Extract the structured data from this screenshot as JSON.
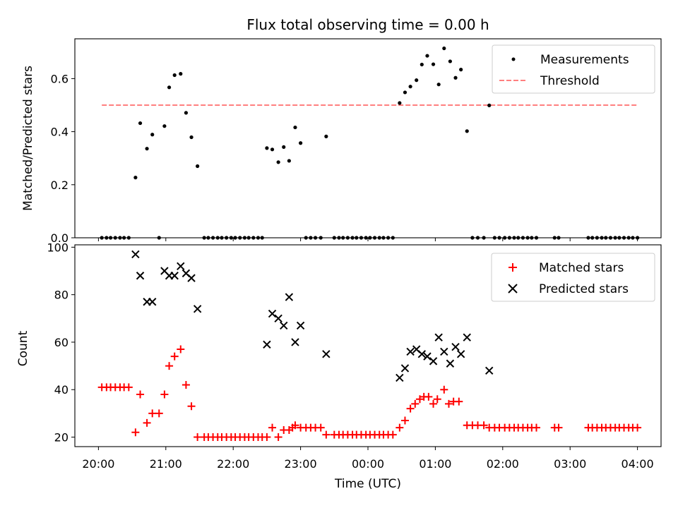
{
  "chart_data": [
    {
      "type": "scatter",
      "title": "Flux total observing time = 0.00 h",
      "ylabel": "Matched/Predicted stars",
      "xlabel": "",
      "xlim": [
        -0.35,
        8.35
      ],
      "ylim": [
        0.0,
        0.75
      ],
      "yticks": [
        "0.0",
        "0.2",
        "0.4",
        "0.6"
      ],
      "legend_position": "top-right",
      "series": [
        {
          "name": "Measurements",
          "marker": "dot",
          "color": "#000000",
          "points": [
            [
              0.05,
              0
            ],
            [
              0.12,
              0
            ],
            [
              0.18,
              0
            ],
            [
              0.25,
              0
            ],
            [
              0.32,
              0
            ],
            [
              0.38,
              0
            ],
            [
              0.45,
              0
            ],
            [
              0.55,
              0.227
            ],
            [
              0.62,
              0.432
            ],
            [
              0.72,
              0.336
            ],
            [
              0.8,
              0.389
            ],
            [
              0.9,
              0
            ],
            [
              0.98,
              0.421
            ],
            [
              1.05,
              0.567
            ],
            [
              1.13,
              0.613
            ],
            [
              1.22,
              0.618
            ],
            [
              1.3,
              0.471
            ],
            [
              1.38,
              0.379
            ],
            [
              1.47,
              0.27
            ],
            [
              1.57,
              0
            ],
            [
              1.63,
              0
            ],
            [
              1.7,
              0
            ],
            [
              1.77,
              0
            ],
            [
              1.83,
              0
            ],
            [
              1.9,
              0
            ],
            [
              1.97,
              0
            ],
            [
              2.03,
              0
            ],
            [
              2.1,
              0
            ],
            [
              2.17,
              0
            ],
            [
              2.23,
              0
            ],
            [
              2.3,
              0
            ],
            [
              2.37,
              0
            ],
            [
              2.43,
              0
            ],
            [
              2.5,
              0.338
            ],
            [
              2.58,
              0.333
            ],
            [
              2.67,
              0.285
            ],
            [
              2.75,
              0.342
            ],
            [
              2.83,
              0.29
            ],
            [
              2.92,
              0.416
            ],
            [
              3.0,
              0.357
            ],
            [
              3.08,
              0
            ],
            [
              3.15,
              0
            ],
            [
              3.22,
              0
            ],
            [
              3.3,
              0
            ],
            [
              3.38,
              0.382
            ],
            [
              3.5,
              0
            ],
            [
              3.57,
              0
            ],
            [
              3.63,
              0
            ],
            [
              3.7,
              0
            ],
            [
              3.77,
              0
            ],
            [
              3.83,
              0
            ],
            [
              3.9,
              0
            ],
            [
              3.97,
              0
            ],
            [
              4.03,
              0
            ],
            [
              4.1,
              0
            ],
            [
              4.17,
              0
            ],
            [
              4.23,
              0
            ],
            [
              4.3,
              0
            ],
            [
              4.37,
              0
            ],
            [
              4.47,
              0.508
            ],
            [
              4.55,
              0.548
            ],
            [
              4.63,
              0.57
            ],
            [
              4.72,
              0.594
            ],
            [
              4.8,
              0.653
            ],
            [
              4.88,
              0.686
            ],
            [
              4.97,
              0.654
            ],
            [
              5.05,
              0.578
            ],
            [
              5.13,
              0.714
            ],
            [
              5.22,
              0.665
            ],
            [
              5.3,
              0.603
            ],
            [
              5.38,
              0.634
            ],
            [
              5.47,
              0.402
            ],
            [
              5.55,
              0
            ],
            [
              5.63,
              0
            ],
            [
              5.72,
              0
            ],
            [
              5.8,
              0.499
            ],
            [
              5.88,
              0
            ],
            [
              5.95,
              0
            ],
            [
              6.03,
              0
            ],
            [
              6.1,
              0
            ],
            [
              6.17,
              0
            ],
            [
              6.23,
              0
            ],
            [
              6.3,
              0
            ],
            [
              6.37,
              0
            ],
            [
              6.43,
              0
            ],
            [
              6.5,
              0
            ],
            [
              6.77,
              0
            ],
            [
              6.83,
              0
            ],
            [
              7.27,
              0
            ],
            [
              7.33,
              0
            ],
            [
              7.4,
              0
            ],
            [
              7.47,
              0
            ],
            [
              7.53,
              0
            ],
            [
              7.6,
              0
            ],
            [
              7.67,
              0
            ],
            [
              7.73,
              0
            ],
            [
              7.8,
              0
            ],
            [
              7.87,
              0
            ],
            [
              7.93,
              0
            ],
            [
              8.0,
              0
            ]
          ]
        },
        {
          "name": "Threshold",
          "marker": "dashed-line",
          "color": "#ff7f7f",
          "points": [
            [
              0.05,
              0.5
            ],
            [
              8.0,
              0.5
            ]
          ]
        }
      ]
    },
    {
      "type": "scatter",
      "title": "",
      "ylabel": "Count",
      "xlabel": "Time (UTC)",
      "xlim": [
        -0.35,
        8.35
      ],
      "ylim": [
        16,
        101
      ],
      "yticks": [
        "20",
        "40",
        "60",
        "80",
        "100"
      ],
      "xticks": [
        {
          "x": 0,
          "label": "20:00"
        },
        {
          "x": 1,
          "label": "21:00"
        },
        {
          "x": 2,
          "label": "22:00"
        },
        {
          "x": 3,
          "label": "23:00"
        },
        {
          "x": 4,
          "label": "00:00"
        },
        {
          "x": 5,
          "label": "01:00"
        },
        {
          "x": 6,
          "label": "02:00"
        },
        {
          "x": 7,
          "label": "03:00"
        },
        {
          "x": 8,
          "label": "04:00"
        }
      ],
      "legend_position": "top-right",
      "series": [
        {
          "name": "Matched stars",
          "marker": "plus",
          "color": "#ff0000",
          "points": [
            [
              0.05,
              41
            ],
            [
              0.12,
              41
            ],
            [
              0.18,
              41
            ],
            [
              0.25,
              41
            ],
            [
              0.32,
              41
            ],
            [
              0.38,
              41
            ],
            [
              0.45,
              41
            ],
            [
              0.55,
              22
            ],
            [
              0.62,
              38
            ],
            [
              0.72,
              26
            ],
            [
              0.8,
              30
            ],
            [
              0.9,
              30
            ],
            [
              0.98,
              38
            ],
            [
              1.05,
              50
            ],
            [
              1.13,
              54
            ],
            [
              1.22,
              57
            ],
            [
              1.3,
              42
            ],
            [
              1.38,
              33
            ],
            [
              1.47,
              20
            ],
            [
              1.57,
              20
            ],
            [
              1.63,
              20
            ],
            [
              1.7,
              20
            ],
            [
              1.77,
              20
            ],
            [
              1.83,
              20
            ],
            [
              1.9,
              20
            ],
            [
              1.97,
              20
            ],
            [
              2.03,
              20
            ],
            [
              2.1,
              20
            ],
            [
              2.17,
              20
            ],
            [
              2.23,
              20
            ],
            [
              2.3,
              20
            ],
            [
              2.37,
              20
            ],
            [
              2.43,
              20
            ],
            [
              2.5,
              20
            ],
            [
              2.58,
              24
            ],
            [
              2.67,
              20
            ],
            [
              2.75,
              23
            ],
            [
              2.83,
              23
            ],
            [
              2.88,
              24
            ],
            [
              2.92,
              25
            ],
            [
              3.0,
              24
            ],
            [
              3.08,
              24
            ],
            [
              3.15,
              24
            ],
            [
              3.22,
              24
            ],
            [
              3.3,
              24
            ],
            [
              3.38,
              21
            ],
            [
              3.5,
              21
            ],
            [
              3.57,
              21
            ],
            [
              3.63,
              21
            ],
            [
              3.7,
              21
            ],
            [
              3.77,
              21
            ],
            [
              3.83,
              21
            ],
            [
              3.9,
              21
            ],
            [
              3.97,
              21
            ],
            [
              4.03,
              21
            ],
            [
              4.1,
              21
            ],
            [
              4.17,
              21
            ],
            [
              4.23,
              21
            ],
            [
              4.3,
              21
            ],
            [
              4.37,
              21
            ],
            [
              4.47,
              24
            ],
            [
              4.55,
              27
            ],
            [
              4.63,
              32
            ],
            [
              4.7,
              34
            ],
            [
              4.77,
              36
            ],
            [
              4.83,
              37
            ],
            [
              4.9,
              37
            ],
            [
              4.97,
              34
            ],
            [
              5.03,
              36
            ],
            [
              5.13,
              40
            ],
            [
              5.2,
              34
            ],
            [
              5.27,
              35
            ],
            [
              5.35,
              35
            ],
            [
              5.47,
              25
            ],
            [
              5.55,
              25
            ],
            [
              5.63,
              25
            ],
            [
              5.72,
              25
            ],
            [
              5.8,
              24
            ],
            [
              5.88,
              24
            ],
            [
              5.95,
              24
            ],
            [
              6.03,
              24
            ],
            [
              6.1,
              24
            ],
            [
              6.17,
              24
            ],
            [
              6.23,
              24
            ],
            [
              6.3,
              24
            ],
            [
              6.37,
              24
            ],
            [
              6.43,
              24
            ],
            [
              6.5,
              24
            ],
            [
              6.77,
              24
            ],
            [
              6.83,
              24
            ],
            [
              7.27,
              24
            ],
            [
              7.33,
              24
            ],
            [
              7.4,
              24
            ],
            [
              7.47,
              24
            ],
            [
              7.53,
              24
            ],
            [
              7.6,
              24
            ],
            [
              7.67,
              24
            ],
            [
              7.73,
              24
            ],
            [
              7.8,
              24
            ],
            [
              7.87,
              24
            ],
            [
              7.93,
              24
            ],
            [
              8.0,
              24
            ]
          ]
        },
        {
          "name": "Predicted stars",
          "marker": "x",
          "color": "#000000",
          "points": [
            [
              0.55,
              97
            ],
            [
              0.62,
              88
            ],
            [
              0.72,
              77
            ],
            [
              0.8,
              77
            ],
            [
              0.98,
              90
            ],
            [
              1.05,
              88
            ],
            [
              1.13,
              88
            ],
            [
              1.22,
              92
            ],
            [
              1.3,
              89
            ],
            [
              1.38,
              87
            ],
            [
              1.47,
              74
            ],
            [
              2.5,
              59
            ],
            [
              2.58,
              72
            ],
            [
              2.67,
              70
            ],
            [
              2.75,
              67
            ],
            [
              2.83,
              79
            ],
            [
              2.92,
              60
            ],
            [
              3.0,
              67
            ],
            [
              3.38,
              55
            ],
            [
              4.47,
              45
            ],
            [
              4.55,
              49
            ],
            [
              4.63,
              56
            ],
            [
              4.72,
              57
            ],
            [
              4.8,
              55
            ],
            [
              4.88,
              54
            ],
            [
              4.97,
              52
            ],
            [
              5.05,
              62
            ],
            [
              5.13,
              56
            ],
            [
              5.22,
              51
            ],
            [
              5.3,
              58
            ],
            [
              5.38,
              55
            ],
            [
              5.47,
              62
            ],
            [
              5.8,
              48
            ]
          ]
        }
      ]
    }
  ]
}
